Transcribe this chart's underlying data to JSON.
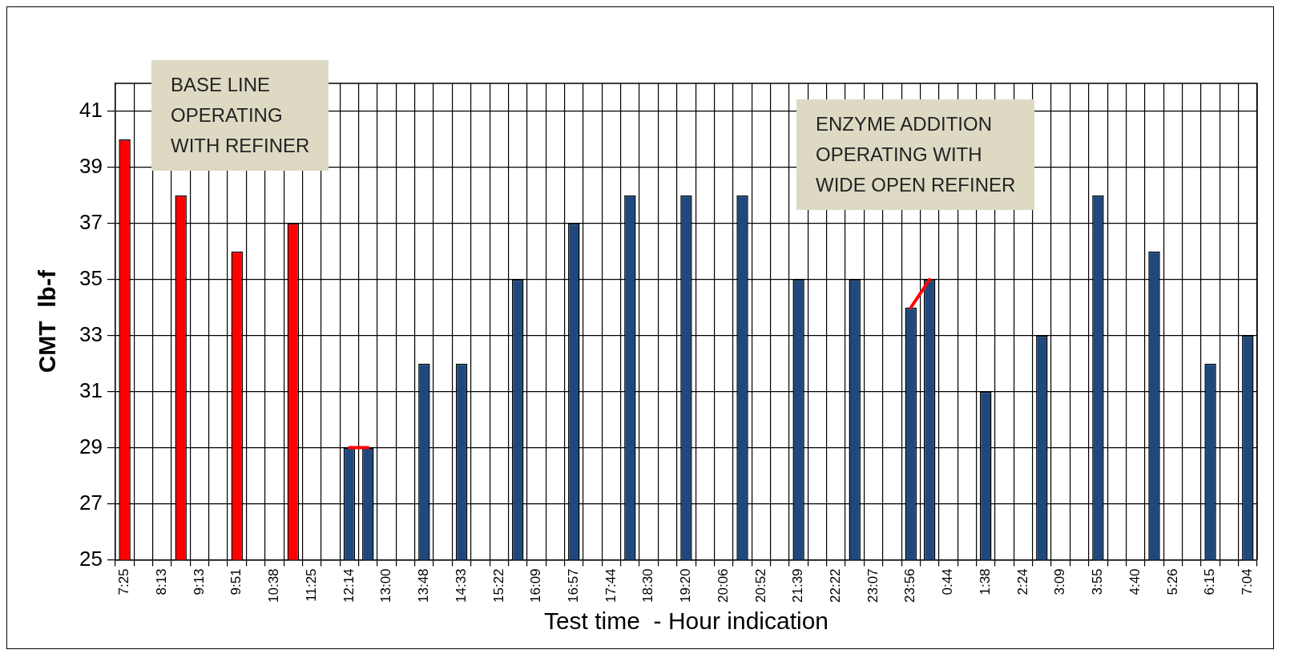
{
  "chart_data": {
    "type": "bar",
    "xlabel": "Test time  - Hour indication",
    "ylabel": "CMT  lb-f",
    "categories": [
      "7:25",
      null,
      "8:13",
      null,
      "9:13",
      null,
      "9:51",
      null,
      "10:38",
      null,
      "11:25",
      null,
      "12:14",
      null,
      "13:00",
      null,
      "13:48",
      null,
      "14:33",
      null,
      "15:22",
      null,
      "16:09",
      null,
      "16:57",
      null,
      "17:44",
      null,
      "18:30",
      null,
      "19:20",
      null,
      "20:06",
      null,
      "20:52",
      null,
      "21:39",
      null,
      "22:22",
      null,
      "23:07",
      null,
      "23:56",
      null,
      "0:44",
      null,
      "1:38",
      null,
      "2:24",
      null,
      "3:09",
      null,
      "3:55",
      null,
      "4:40",
      null,
      "5:26",
      null,
      "6:15",
      null,
      "7:04"
    ],
    "series": [
      {
        "color": "#ff0000",
        "values": [
          40,
          null,
          null,
          38,
          null,
          null,
          36,
          null,
          null,
          37,
          null,
          null,
          null,
          null,
          null,
          null,
          null,
          null,
          null,
          null,
          null,
          null,
          null,
          null,
          null,
          null,
          null,
          null,
          null,
          null,
          null,
          null,
          null,
          null,
          null,
          null,
          null,
          null,
          null,
          null,
          null,
          null,
          null,
          null,
          null,
          null,
          null,
          null,
          null,
          null,
          null,
          null,
          null,
          null,
          null,
          null,
          null,
          null,
          null,
          null,
          null
        ]
      },
      {
        "color": "#1f497d",
        "values": [
          null,
          null,
          null,
          null,
          null,
          null,
          null,
          null,
          null,
          null,
          null,
          null,
          29,
          29,
          null,
          null,
          32,
          null,
          32,
          null,
          null,
          35,
          null,
          null,
          37,
          null,
          null,
          38,
          null,
          null,
          38,
          null,
          null,
          38,
          null,
          null,
          35,
          null,
          null,
          35,
          null,
          null,
          34,
          35,
          null,
          null,
          31,
          null,
          null,
          33,
          null,
          null,
          38,
          null,
          null,
          36,
          null,
          null,
          32,
          null,
          33
        ]
      },
      {
        "type": "line",
        "color": "#ff0000",
        "marker": "none",
        "values": [
          null,
          null,
          null,
          null,
          null,
          null,
          null,
          null,
          null,
          null,
          null,
          null,
          29,
          29,
          null,
          null,
          null,
          null,
          null,
          null,
          null,
          null,
          null,
          null,
          null,
          null,
          null,
          null,
          null,
          null,
          null,
          null,
          null,
          null,
          null,
          null,
          null,
          null,
          null,
          null,
          null,
          null,
          34,
          35,
          null,
          null,
          null,
          null,
          null,
          null,
          null,
          null,
          null,
          null,
          null,
          null,
          null,
          null,
          null,
          null,
          null
        ]
      }
    ],
    "ylim": [
      25,
      42
    ],
    "yticks": [
      25,
      27,
      29,
      31,
      33,
      35,
      37,
      39,
      41
    ],
    "grid": true,
    "legend": false,
    "annotations": [
      "BASE LINE\nOPERATING\nWITH REFINER",
      "ENZYME ADDITION\nOPERATING WITH\nWIDE OPEN REFINER"
    ]
  }
}
